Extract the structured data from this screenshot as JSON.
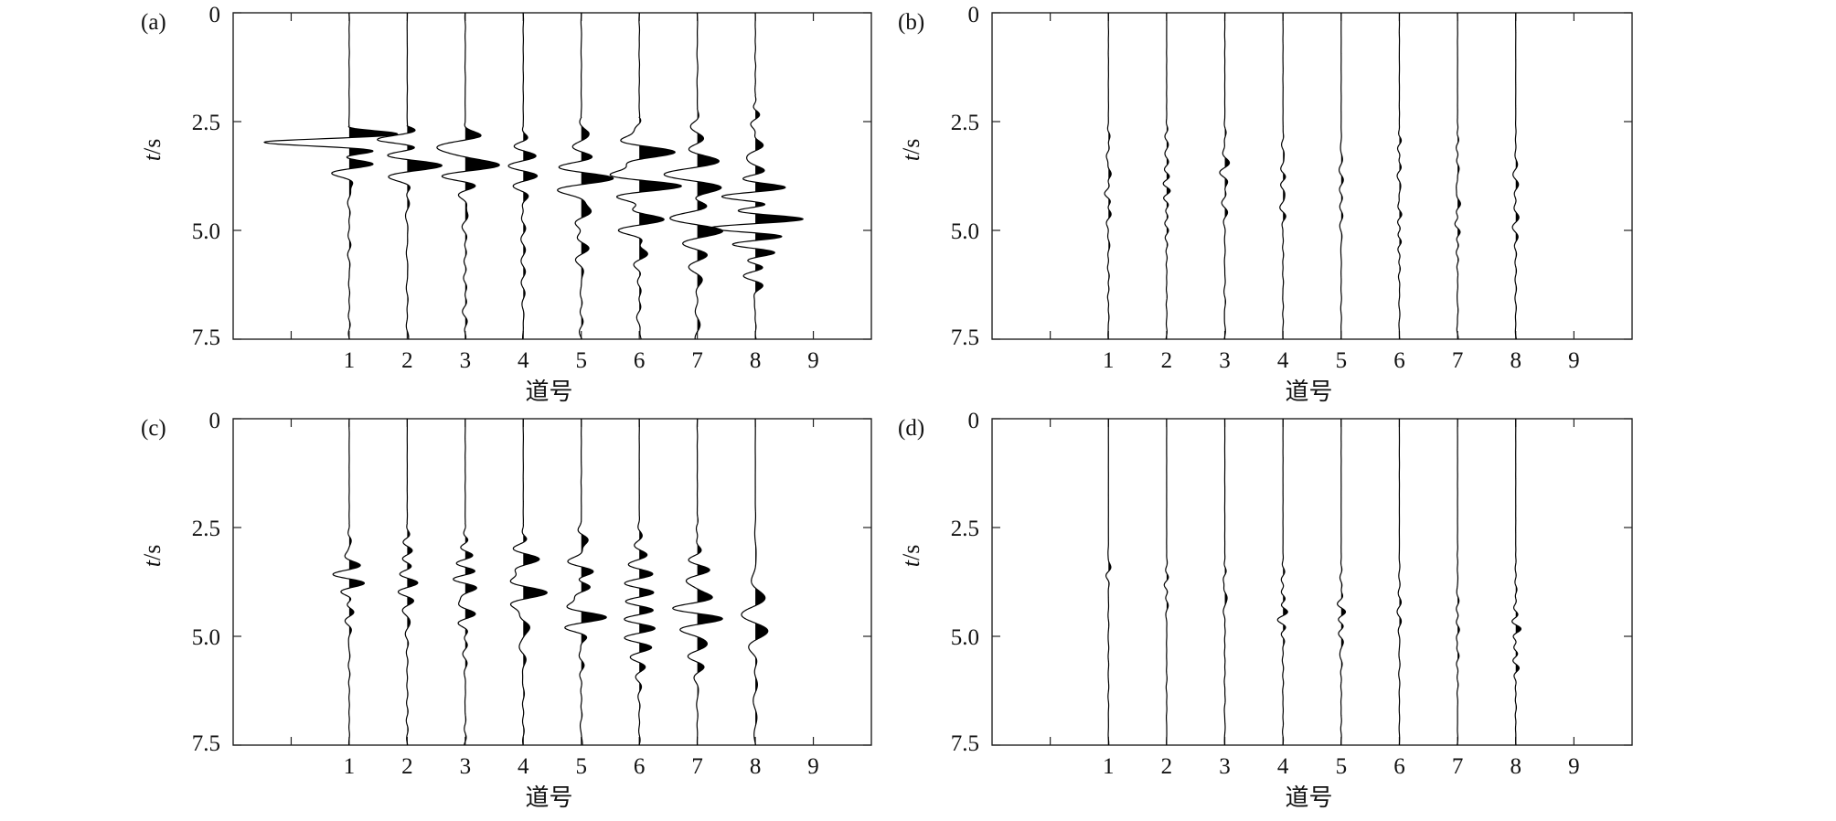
{
  "figure": {
    "panels": [
      {
        "id": "a",
        "label": "(a)",
        "xlabel": "道号",
        "ylabel_var": "t",
        "ylabel_unit": "/s",
        "x_ticks": [
          "1",
          "2",
          "3",
          "4",
          "5",
          "6",
          "7",
          "8",
          "9"
        ],
        "y_ticks": [
          "0",
          "2.5",
          "5.0",
          "7.5"
        ]
      },
      {
        "id": "b",
        "label": "(b)",
        "xlabel": "道号",
        "ylabel_var": "t",
        "ylabel_unit": "/s",
        "x_ticks": [
          "1",
          "2",
          "3",
          "4",
          "5",
          "6",
          "7",
          "8",
          "9"
        ],
        "y_ticks": [
          "0",
          "2.5",
          "5.0",
          "7.5"
        ]
      },
      {
        "id": "c",
        "label": "(c)",
        "xlabel": "道号",
        "ylabel_var": "t",
        "ylabel_unit": "/s",
        "x_ticks": [
          "1",
          "2",
          "3",
          "4",
          "5",
          "6",
          "7",
          "8",
          "9"
        ],
        "y_ticks": [
          "0",
          "2.5",
          "5.0",
          "7.5"
        ]
      },
      {
        "id": "d",
        "label": "(d)",
        "xlabel": "道号",
        "ylabel_var": "t",
        "ylabel_unit": "/s",
        "x_ticks": [
          "1",
          "2",
          "3",
          "4",
          "5",
          "6",
          "7",
          "8",
          "9"
        ],
        "y_ticks": [
          "0",
          "2.5",
          "5.0",
          "7.5"
        ]
      }
    ]
  },
  "chart_data": [
    {
      "panel": "a",
      "type": "line",
      "title": "",
      "xlabel": "道号",
      "ylabel": "t/s",
      "xlim": [
        -1,
        10
      ],
      "ylim": [
        0,
        7.5
      ],
      "y_inverted": true,
      "grid": false,
      "series": [
        {
          "trace": 1,
          "onset": 2.6,
          "center": 3.0,
          "spread": 0.7,
          "amp": 2.4,
          "tail": 0.04,
          "freq": 10
        },
        {
          "trace": 2,
          "onset": 2.6,
          "center": 3.05,
          "spread": 0.8,
          "amp": 1.3,
          "tail": 0.04,
          "freq": 10
        },
        {
          "trace": 3,
          "onset": 2.5,
          "center": 3.2,
          "spread": 0.9,
          "amp": 1.0,
          "tail": 0.05,
          "freq": 10
        },
        {
          "trace": 4,
          "onset": 2.6,
          "center": 3.6,
          "spread": 1.0,
          "amp": 1.1,
          "tail": 0.06,
          "freq": 10
        },
        {
          "trace": 5,
          "onset": 2.4,
          "center": 3.8,
          "spread": 1.3,
          "amp": 1.0,
          "tail": 0.06,
          "freq": 10
        },
        {
          "trace": 6,
          "onset": 2.4,
          "center": 4.0,
          "spread": 1.4,
          "amp": 0.9,
          "tail": 0.06,
          "freq": 10
        },
        {
          "trace": 7,
          "onset": 2.2,
          "center": 4.3,
          "spread": 1.4,
          "amp": 0.9,
          "tail": 0.06,
          "freq": 10
        },
        {
          "trace": 8,
          "onset": 1.9,
          "center": 4.5,
          "spread": 1.4,
          "amp": 0.9,
          "tail": 0.05,
          "freq": 10
        }
      ]
    },
    {
      "panel": "b",
      "type": "line",
      "title": "",
      "xlabel": "道号",
      "ylabel": "t/s",
      "xlim": [
        -1,
        10
      ],
      "ylim": [
        0,
        7.5
      ],
      "y_inverted": true,
      "grid": false,
      "series": [
        {
          "trace": 1,
          "onset": 2.4,
          "center": 4.0,
          "spread": 1.2,
          "amp": 0.09,
          "tail": 0.02,
          "freq": 12
        },
        {
          "trace": 2,
          "onset": 2.4,
          "center": 4.0,
          "spread": 1.2,
          "amp": 0.09,
          "tail": 0.02,
          "freq": 12
        },
        {
          "trace": 3,
          "onset": 2.4,
          "center": 4.0,
          "spread": 1.2,
          "amp": 0.09,
          "tail": 0.02,
          "freq": 12
        },
        {
          "trace": 4,
          "onset": 2.5,
          "center": 4.1,
          "spread": 1.2,
          "amp": 0.09,
          "tail": 0.02,
          "freq": 12
        },
        {
          "trace": 5,
          "onset": 2.5,
          "center": 4.1,
          "spread": 1.2,
          "amp": 0.09,
          "tail": 0.02,
          "freq": 12
        },
        {
          "trace": 6,
          "onset": 2.5,
          "center": 4.2,
          "spread": 1.3,
          "amp": 0.09,
          "tail": 0.02,
          "freq": 12
        },
        {
          "trace": 7,
          "onset": 2.4,
          "center": 4.3,
          "spread": 1.3,
          "amp": 0.1,
          "tail": 0.02,
          "freq": 12
        },
        {
          "trace": 8,
          "onset": 2.4,
          "center": 4.4,
          "spread": 1.3,
          "amp": 0.09,
          "tail": 0.02,
          "freq": 12
        }
      ]
    },
    {
      "panel": "c",
      "type": "line",
      "title": "",
      "xlabel": "道号",
      "ylabel": "t/s",
      "xlim": [
        -1,
        10
      ],
      "ylim": [
        0,
        7.5
      ],
      "y_inverted": true,
      "grid": false,
      "series": [
        {
          "trace": 1,
          "onset": 2.4,
          "center": 3.7,
          "spread": 0.9,
          "amp": 0.55,
          "tail": 0.03,
          "freq": 10
        },
        {
          "trace": 2,
          "onset": 2.4,
          "center": 3.8,
          "spread": 1.0,
          "amp": 0.55,
          "tail": 0.03,
          "freq": 10
        },
        {
          "trace": 3,
          "onset": 2.4,
          "center": 3.8,
          "spread": 1.0,
          "amp": 0.6,
          "tail": 0.03,
          "freq": 10
        },
        {
          "trace": 4,
          "onset": 2.4,
          "center": 3.9,
          "spread": 1.1,
          "amp": 0.6,
          "tail": 0.03,
          "freq": 10
        },
        {
          "trace": 5,
          "onset": 2.3,
          "center": 4.1,
          "spread": 1.2,
          "amp": 0.6,
          "tail": 0.03,
          "freq": 10
        },
        {
          "trace": 6,
          "onset": 2.2,
          "center": 4.2,
          "spread": 1.2,
          "amp": 0.6,
          "tail": 0.03,
          "freq": 10
        },
        {
          "trace": 7,
          "onset": 2.1,
          "center": 4.4,
          "spread": 1.3,
          "amp": 0.65,
          "tail": 0.03,
          "freq": 10
        },
        {
          "trace": 8,
          "onset": 1.8,
          "center": 4.6,
          "spread": 1.3,
          "amp": 0.6,
          "tail": 0.03,
          "freq": 10
        }
      ]
    },
    {
      "panel": "d",
      "type": "line",
      "title": "",
      "xlabel": "道号",
      "ylabel": "t/s",
      "xlim": [
        -1,
        10
      ],
      "ylim": [
        0,
        7.5
      ],
      "y_inverted": true,
      "grid": false,
      "series": [
        {
          "trace": 1,
          "onset": 2.8,
          "center": 3.5,
          "spread": 0.4,
          "amp": 0.1,
          "tail": 0.01,
          "freq": 12
        },
        {
          "trace": 2,
          "onset": 2.9,
          "center": 3.8,
          "spread": 0.5,
          "amp": 0.1,
          "tail": 0.01,
          "freq": 12
        },
        {
          "trace": 3,
          "onset": 3.0,
          "center": 4.0,
          "spread": 0.6,
          "amp": 0.11,
          "tail": 0.01,
          "freq": 12
        },
        {
          "trace": 4,
          "onset": 3.0,
          "center": 4.4,
          "spread": 0.8,
          "amp": 0.1,
          "tail": 0.01,
          "freq": 12
        },
        {
          "trace": 5,
          "onset": 3.0,
          "center": 4.6,
          "spread": 0.9,
          "amp": 0.1,
          "tail": 0.01,
          "freq": 12
        },
        {
          "trace": 6,
          "onset": 3.0,
          "center": 4.8,
          "spread": 1.0,
          "amp": 0.1,
          "tail": 0.01,
          "freq": 12
        },
        {
          "trace": 7,
          "onset": 2.8,
          "center": 4.9,
          "spread": 1.0,
          "amp": 0.1,
          "tail": 0.01,
          "freq": 12
        },
        {
          "trace": 8,
          "onset": 2.8,
          "center": 5.0,
          "spread": 1.0,
          "amp": 0.1,
          "tail": 0.01,
          "freq": 12
        }
      ]
    }
  ]
}
